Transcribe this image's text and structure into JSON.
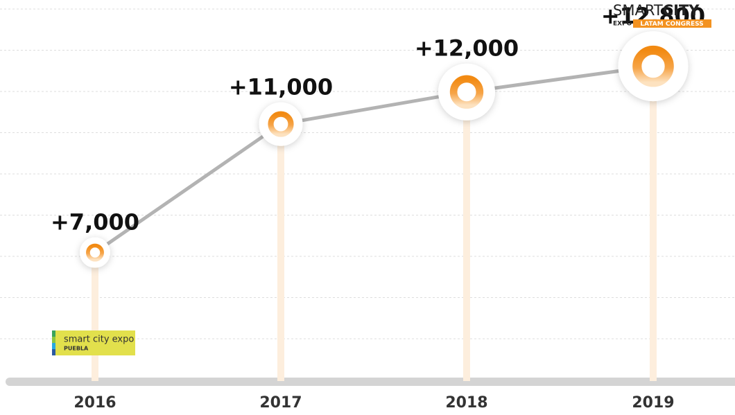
{
  "chart_data": {
    "type": "line",
    "categories": [
      "2016",
      "2017",
      "2018",
      "2019"
    ],
    "values": [
      7000,
      11000,
      12000,
      12800
    ],
    "value_labels": [
      "+7,000",
      "+11,000",
      "+12,000",
      "+12,800"
    ],
    "color": "#b3b3b3",
    "marker_color": "#f39220",
    "ylim": [
      3000,
      14000
    ],
    "grid": true
  },
  "logo": {
    "brand_light": "SMART",
    "brand_bold": "CITY",
    "expo": "EXPO",
    "congress": "LATAM CONGRESS"
  },
  "badge": {
    "line1": "smart city expo",
    "line2": "PUEBLA"
  }
}
